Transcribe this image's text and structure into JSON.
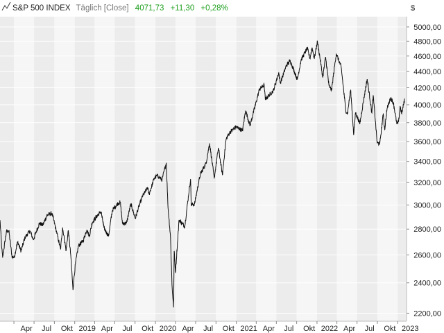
{
  "header": {
    "symbol": "S&P 500 INDEX",
    "mode": "Täglich [Close]",
    "last": "4071,73",
    "change": "+11,30",
    "change_pct": "+0,28%"
  },
  "colors": {
    "accent_green": "#1a9e1a",
    "band_dark": "#ececec",
    "band_light": "#f6f6f6",
    "grid": "#ffffff",
    "line": "#111111"
  },
  "chart_data": {
    "type": "line",
    "title": "",
    "xlabel": "",
    "ylabel": "$",
    "ylim": [
      2150,
      5150
    ],
    "y_ticks": [
      {
        "value": 2200,
        "label": "2200,00"
      },
      {
        "value": 2400,
        "label": "2400,00"
      },
      {
        "value": 2600,
        "label": "2600,00"
      },
      {
        "value": 2800,
        "label": "2800,00"
      },
      {
        "value": 3000,
        "label": "3000,00"
      },
      {
        "value": 3200,
        "label": "3200,00"
      },
      {
        "value": 3400,
        "label": "3400,00"
      },
      {
        "value": 3600,
        "label": "3600,00"
      },
      {
        "value": 3800,
        "label": "3800,00"
      },
      {
        "value": 4000,
        "label": "4000,00"
      },
      {
        "value": 4200,
        "label": "4200,00"
      },
      {
        "value": 4400,
        "label": "4400,00"
      },
      {
        "value": 4600,
        "label": "4600,00"
      },
      {
        "value": 4800,
        "label": "4800,00"
      },
      {
        "value": 5000,
        "label": "5000,00"
      }
    ],
    "xlim": [
      "2018-01-28",
      "2023-02-10"
    ],
    "x_ticks": [
      {
        "date": "2018-04-01",
        "label": "Apr"
      },
      {
        "date": "2018-07-01",
        "label": "Jul"
      },
      {
        "date": "2018-10-01",
        "label": "Okt"
      },
      {
        "date": "2019-01-01",
        "label": "2019"
      },
      {
        "date": "2019-04-01",
        "label": "Apr"
      },
      {
        "date": "2019-07-01",
        "label": "Jul"
      },
      {
        "date": "2019-10-01",
        "label": "Okt"
      },
      {
        "date": "2020-01-01",
        "label": "2020"
      },
      {
        "date": "2020-04-01",
        "label": "Apr"
      },
      {
        "date": "2020-07-01",
        "label": "Jul"
      },
      {
        "date": "2020-10-01",
        "label": "Okt"
      },
      {
        "date": "2021-01-01",
        "label": "2021"
      },
      {
        "date": "2021-04-01",
        "label": "Apr"
      },
      {
        "date": "2021-07-01",
        "label": "Jul"
      },
      {
        "date": "2021-10-01",
        "label": "Okt"
      },
      {
        "date": "2022-01-01",
        "label": "2022"
      },
      {
        "date": "2022-04-01",
        "label": "Apr"
      },
      {
        "date": "2022-07-01",
        "label": "Jul"
      },
      {
        "date": "2022-10-01",
        "label": "Okt"
      },
      {
        "date": "2023-01-01",
        "label": "2023"
      }
    ],
    "series": [
      {
        "name": "S&P 500 INDEX",
        "points": [
          [
            "2018-01-28",
            2873
          ],
          [
            "2018-02-05",
            2650
          ],
          [
            "2018-02-09",
            2580
          ],
          [
            "2018-02-26",
            2780
          ],
          [
            "2018-03-09",
            2786
          ],
          [
            "2018-03-23",
            2590
          ],
          [
            "2018-04-02",
            2580
          ],
          [
            "2018-04-18",
            2700
          ],
          [
            "2018-05-03",
            2630
          ],
          [
            "2018-05-21",
            2733
          ],
          [
            "2018-06-12",
            2786
          ],
          [
            "2018-06-28",
            2716
          ],
          [
            "2018-07-25",
            2846
          ],
          [
            "2018-08-10",
            2833
          ],
          [
            "2018-08-29",
            2914
          ],
          [
            "2018-09-20",
            2930
          ],
          [
            "2018-10-10",
            2785
          ],
          [
            "2018-10-29",
            2641
          ],
          [
            "2018-11-07",
            2813
          ],
          [
            "2018-11-23",
            2633
          ],
          [
            "2018-12-03",
            2790
          ],
          [
            "2018-12-14",
            2600
          ],
          [
            "2018-12-24",
            2351
          ],
          [
            "2019-01-04",
            2532
          ],
          [
            "2019-01-18",
            2670
          ],
          [
            "2019-02-08",
            2707
          ],
          [
            "2019-02-25",
            2796
          ],
          [
            "2019-03-08",
            2743
          ],
          [
            "2019-03-21",
            2854
          ],
          [
            "2019-04-12",
            2907
          ],
          [
            "2019-04-30",
            2945
          ],
          [
            "2019-05-13",
            2811
          ],
          [
            "2019-06-03",
            2744
          ],
          [
            "2019-06-20",
            2954
          ],
          [
            "2019-07-15",
            3014
          ],
          [
            "2019-07-26",
            3025
          ],
          [
            "2019-08-05",
            2844
          ],
          [
            "2019-08-15",
            2847
          ],
          [
            "2019-08-23",
            2847
          ],
          [
            "2019-09-12",
            3009
          ],
          [
            "2019-10-02",
            2887
          ],
          [
            "2019-10-18",
            2986
          ],
          [
            "2019-11-04",
            3078
          ],
          [
            "2019-11-27",
            3153
          ],
          [
            "2019-12-03",
            3093
          ],
          [
            "2019-12-27",
            3240
          ],
          [
            "2020-01-10",
            3265
          ],
          [
            "2020-01-31",
            3225
          ],
          [
            "2020-02-19",
            3386
          ],
          [
            "2020-02-27",
            2978
          ],
          [
            "2020-03-09",
            2746
          ],
          [
            "2020-03-16",
            2386
          ],
          [
            "2020-03-23",
            2237
          ],
          [
            "2020-03-26",
            2630
          ],
          [
            "2020-04-01",
            2470
          ],
          [
            "2020-04-17",
            2875
          ],
          [
            "2020-05-13",
            2820
          ],
          [
            "2020-06-08",
            3232
          ],
          [
            "2020-06-11",
            3002
          ],
          [
            "2020-06-26",
            3009
          ],
          [
            "2020-07-22",
            3276
          ],
          [
            "2020-08-17",
            3381
          ],
          [
            "2020-09-02",
            3580
          ],
          [
            "2020-09-23",
            3237
          ],
          [
            "2020-10-12",
            3534
          ],
          [
            "2020-10-30",
            3270
          ],
          [
            "2020-11-16",
            3627
          ],
          [
            "2020-12-04",
            3699
          ],
          [
            "2020-12-31",
            3756
          ],
          [
            "2021-01-29",
            3714
          ],
          [
            "2021-02-12",
            3934
          ],
          [
            "2021-03-04",
            3768
          ],
          [
            "2021-03-26",
            3974
          ],
          [
            "2021-04-16",
            4185
          ],
          [
            "2021-05-12",
            4063
          ],
          [
            "2021-05-07",
            4232
          ],
          [
            "2021-06-18",
            4166
          ],
          [
            "2021-07-12",
            4384
          ],
          [
            "2021-07-19",
            4258
          ],
          [
            "2021-08-16",
            4479
          ],
          [
            "2021-09-02",
            4537
          ],
          [
            "2021-10-04",
            4300
          ],
          [
            "2021-10-21",
            4549
          ],
          [
            "2021-11-18",
            4704
          ],
          [
            "2021-11-30",
            4567
          ],
          [
            "2021-12-10",
            4712
          ],
          [
            "2021-12-20",
            4568
          ],
          [
            "2022-01-03",
            4797
          ],
          [
            "2022-01-27",
            4326
          ],
          [
            "2022-02-09",
            4587
          ],
          [
            "2022-02-24",
            4225
          ],
          [
            "2022-03-08",
            4170
          ],
          [
            "2022-03-29",
            4631
          ],
          [
            "2022-04-20",
            4459
          ],
          [
            "2022-05-11",
            3935
          ],
          [
            "2022-05-19",
            3900
          ],
          [
            "2022-06-02",
            4176
          ],
          [
            "2022-06-16",
            3667
          ],
          [
            "2022-06-24",
            3912
          ],
          [
            "2022-07-14",
            3790
          ],
          [
            "2022-08-16",
            4305
          ],
          [
            "2022-09-06",
            3908
          ],
          [
            "2022-09-12",
            4110
          ],
          [
            "2022-09-30",
            3586
          ],
          [
            "2022-10-12",
            3577
          ],
          [
            "2022-10-28",
            3901
          ],
          [
            "2022-11-03",
            3720
          ],
          [
            "2022-11-14",
            3957
          ],
          [
            "2022-11-30",
            4080
          ],
          [
            "2022-12-13",
            4019
          ],
          [
            "2022-12-28",
            3783
          ],
          [
            "2023-01-05",
            3808
          ],
          [
            "2023-01-12",
            3983
          ],
          [
            "2023-01-19",
            3899
          ],
          [
            "2023-02-02",
            4071
          ]
        ]
      }
    ]
  }
}
